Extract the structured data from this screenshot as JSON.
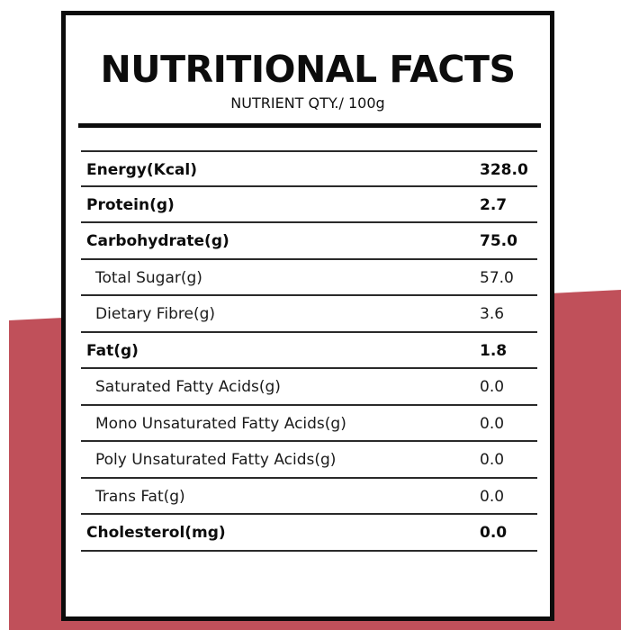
{
  "colors": {
    "accent": "#c0505a",
    "frame": "#0c0c0c",
    "background": "#ffffff"
  },
  "label": {
    "title": "NUTRITIONAL FACTS",
    "subtitle": "NUTRIENT QTY./ 100g"
  },
  "nutrients": [
    {
      "name": "Energy(Kcal)",
      "value": "328.0",
      "level": "main"
    },
    {
      "name": "Protein(g)",
      "value": "2.7",
      "level": "main"
    },
    {
      "name": "Carbohydrate(g)",
      "value": "75.0",
      "level": "main"
    },
    {
      "name": "Total Sugar(g)",
      "value": "57.0",
      "level": "sub"
    },
    {
      "name": "Dietary Fibre(g)",
      "value": "3.6",
      "level": "sub"
    },
    {
      "name": "Fat(g)",
      "value": "1.8",
      "level": "main"
    },
    {
      "name": "Saturated Fatty Acids(g)",
      "value": "0.0",
      "level": "sub"
    },
    {
      "name": "Mono Unsaturated Fatty Acids(g)",
      "value": "0.0",
      "level": "sub"
    },
    {
      "name": "Poly Unsaturated Fatty Acids(g)",
      "value": "0.0",
      "level": "sub"
    },
    {
      "name": "Trans Fat(g)",
      "value": "0.0",
      "level": "sub"
    },
    {
      "name": "Cholesterol(mg)",
      "value": "0.0",
      "level": "main"
    }
  ]
}
